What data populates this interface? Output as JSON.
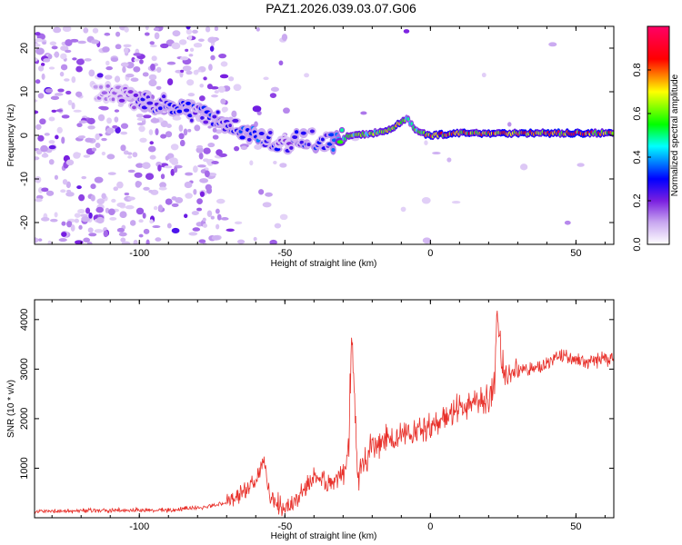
{
  "title": "PAZ1.2026.039.03.07.G06",
  "chart_data": [
    {
      "type": "heatmap",
      "xlabel": "Height of straight line (km)",
      "ylabel": "Frequency (Hz)",
      "xlim": [
        -136,
        63
      ],
      "ylim": [
        -25,
        25
      ],
      "xticks": [
        -100,
        -50,
        0,
        50
      ],
      "yticks": [
        -20,
        -10,
        0,
        10,
        20
      ],
      "colorbar": {
        "label": "Normalized spectral amplitude",
        "range": [
          0,
          1
        ],
        "ticks": [
          "0.0",
          "0.2",
          "0.4",
          "0.6",
          "0.8"
        ],
        "colors": [
          "#ffffff",
          "#8a2be2",
          "#0000ff",
          "#00ffff",
          "#00ff00",
          "#ffff00",
          "#ff0000",
          "#ff0066"
        ]
      },
      "ridge": {
        "x": [
          -110,
          -100,
          -90,
          -80,
          -70,
          -60,
          -55,
          -50,
          -45,
          -40,
          -35,
          -30,
          -25,
          -20,
          -15,
          -10,
          -8,
          -5,
          0,
          10,
          20,
          30,
          40,
          50,
          63
        ],
        "y": [
          10,
          8,
          7,
          5,
          3,
          0,
          -1,
          -2,
          -1,
          -1,
          -2,
          -0.5,
          0,
          0.5,
          1,
          3,
          4,
          1,
          0,
          0.5,
          0.5,
          0.5,
          0.5,
          0.5,
          0.5
        ],
        "amplitude": [
          0.15,
          0.25,
          0.3,
          0.3,
          0.3,
          0.35,
          0.3,
          0.25,
          0.3,
          0.3,
          0.3,
          0.6,
          0.6,
          0.65,
          0.75,
          0.7,
          0.5,
          0.6,
          0.85,
          0.8,
          0.8,
          0.85,
          0.85,
          0.85,
          0.8
        ]
      }
    },
    {
      "type": "line",
      "xlabel": "Height of straight line (km)",
      "ylabel": "SNR (10 * v/v)",
      "xlim": [
        -136,
        63
      ],
      "ylim": [
        0,
        4400
      ],
      "xticks": [
        -100,
        -50,
        0,
        50
      ],
      "yticks": [
        1000,
        2000,
        3000,
        4000
      ],
      "color": "#e8302a",
      "series": [
        {
          "x": [
            -136,
            -120,
            -100,
            -90,
            -80,
            -75,
            -70,
            -65,
            -60,
            -57,
            -55,
            -50,
            -45,
            -40,
            -35,
            -30,
            -28,
            -27,
            -25,
            -22,
            -20,
            -18,
            -15,
            -12,
            -10,
            -5,
            0,
            5,
            10,
            15,
            20,
            22,
            23,
            25,
            30,
            35,
            40,
            45,
            50,
            55,
            60,
            63
          ],
          "values": [
            130,
            140,
            150,
            160,
            200,
            250,
            300,
            500,
            750,
            1100,
            400,
            200,
            400,
            800,
            700,
            900,
            1300,
            3700,
            800,
            1200,
            1500,
            1400,
            1600,
            1600,
            1700,
            1750,
            1800,
            2000,
            2200,
            2300,
            2400,
            2700,
            4200,
            2900,
            3000,
            3000,
            3100,
            3300,
            3200,
            3150,
            3200,
            3200
          ]
        }
      ]
    }
  ]
}
